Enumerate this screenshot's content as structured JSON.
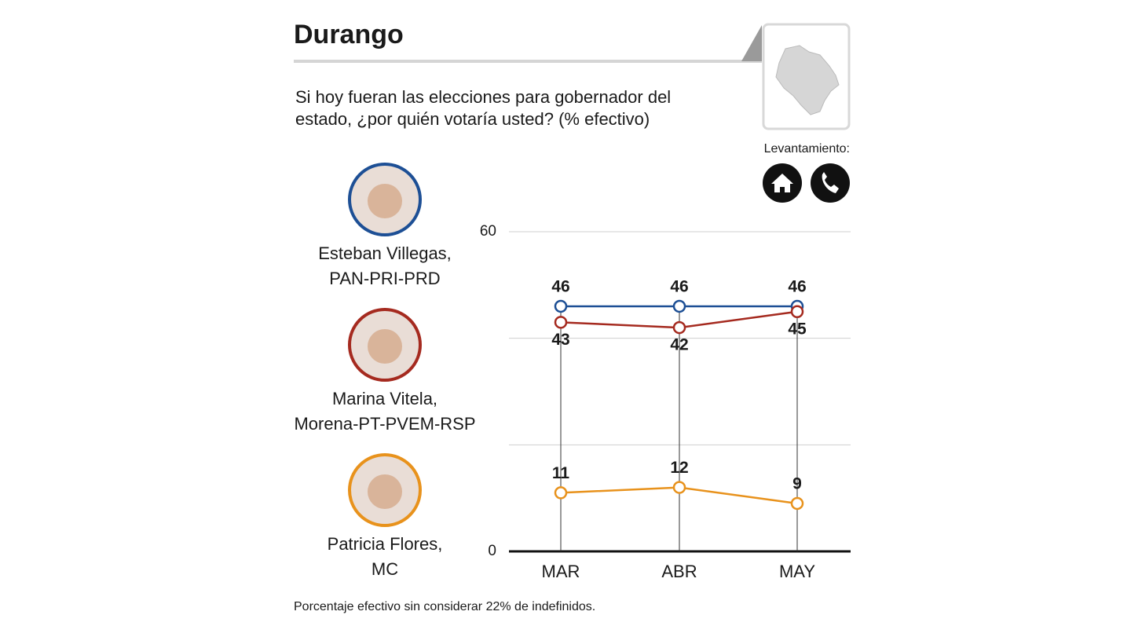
{
  "chart_data": {
    "type": "line",
    "title": "Durango",
    "subtitle": [
      "Si hoy fueran las elecciones para gobernador del",
      "estado, ¿por quién votaría usted? (% efectivo)"
    ],
    "survey_label": "Levantamiento:",
    "categories": [
      "MAR",
      "ABR",
      "MAY"
    ],
    "series": [
      {
        "name": "Esteban Villegas,",
        "party": "PAN-PRI-PRD",
        "color": "#1d4f95",
        "values": [
          46,
          46,
          46
        ]
      },
      {
        "name": "Marina Vitela,",
        "party": "Morena-PT-PVEM-RSP",
        "color": "#a52a1f",
        "values": [
          43,
          42,
          45
        ]
      },
      {
        "name": "Patricia Flores,",
        "party": "MC",
        "color": "#e8921c",
        "values": [
          11,
          12,
          9
        ]
      }
    ],
    "ylim": [
      0,
      60
    ],
    "yticks": [
      0,
      60
    ],
    "ygrid": [
      20,
      40
    ],
    "note": "Porcentaje efectivo sin considerar 22% de indefinidos."
  }
}
